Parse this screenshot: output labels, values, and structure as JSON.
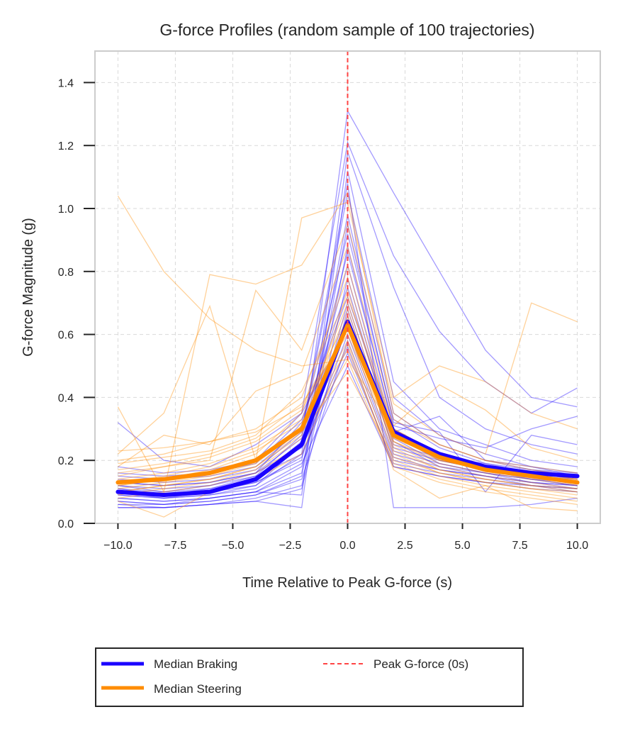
{
  "chart_data": {
    "type": "line",
    "title": "G-force Profiles (random sample of 100 trajectories)",
    "xlabel": "Time Relative to Peak G-force (s)",
    "ylabel": "G-force Magnitude (g)",
    "xlim": [
      -11,
      11
    ],
    "ylim": [
      0,
      1.5
    ],
    "grid": true,
    "x_ticks": [
      -10,
      -7.5,
      -5,
      -2.5,
      0,
      2.5,
      5,
      7.5,
      10
    ],
    "x_tick_labels": [
      "−10.0",
      "−7.5",
      "−5.0",
      "−2.5",
      "0.0",
      "2.5",
      "5.0",
      "7.5",
      "10.0"
    ],
    "y_ticks": [
      0,
      0.2,
      0.4,
      0.6,
      0.8,
      1.0,
      1.2,
      1.4
    ],
    "y_tick_labels": [
      "0.0",
      "0.2",
      "0.4",
      "0.6",
      "0.8",
      "1.0",
      "1.2",
      "1.4"
    ],
    "x": [
      -10,
      -8,
      -6,
      -4,
      -2,
      0,
      2,
      4,
      6,
      8,
      10
    ],
    "colors": {
      "braking": "#1a00ff",
      "steering": "#ff8c00",
      "peak_line": "#ff4444",
      "grid": "#d9d9d9",
      "spine": "#cccccc"
    },
    "series": [
      {
        "name": "Median Braking",
        "role": "median",
        "values": [
          0.1,
          0.09,
          0.1,
          0.14,
          0.25,
          0.64,
          0.29,
          0.22,
          0.18,
          0.16,
          0.15
        ]
      },
      {
        "name": "Median Steering",
        "role": "median",
        "values": [
          0.13,
          0.14,
          0.16,
          0.2,
          0.3,
          0.63,
          0.28,
          0.21,
          0.17,
          0.15,
          0.13
        ]
      }
    ],
    "sample_trajectories": {
      "braking": [
        [
          0.1,
          0.08,
          0.09,
          0.12,
          0.22,
          1.31,
          1.05,
          0.8,
          0.55,
          0.4,
          0.37
        ],
        [
          0.32,
          0.2,
          0.18,
          0.25,
          0.35,
          1.21,
          0.85,
          0.61,
          0.45,
          0.35,
          0.43
        ],
        [
          0.08,
          0.07,
          0.08,
          0.1,
          0.09,
          1.18,
          0.75,
          0.4,
          0.3,
          0.25,
          0.22
        ],
        [
          0.06,
          0.05,
          0.06,
          0.07,
          0.05,
          1.12,
          0.45,
          0.3,
          0.25,
          0.2,
          0.18
        ],
        [
          0.12,
          0.1,
          0.11,
          0.15,
          0.28,
          1.05,
          0.4,
          0.28,
          0.22,
          0.18,
          0.16
        ],
        [
          0.09,
          0.08,
          0.1,
          0.13,
          0.2,
          0.98,
          0.35,
          0.25,
          0.2,
          0.17,
          0.15
        ],
        [
          0.15,
          0.14,
          0.15,
          0.18,
          0.3,
          0.92,
          0.33,
          0.24,
          0.19,
          0.16,
          0.14
        ],
        [
          0.07,
          0.06,
          0.07,
          0.09,
          0.15,
          0.88,
          0.3,
          0.22,
          0.18,
          0.15,
          0.13
        ],
        [
          0.11,
          0.09,
          0.1,
          0.12,
          0.25,
          0.82,
          0.28,
          0.2,
          0.17,
          0.14,
          0.12
        ],
        [
          0.05,
          0.05,
          0.06,
          0.08,
          0.12,
          0.78,
          0.27,
          0.19,
          0.16,
          0.13,
          0.11
        ],
        [
          0.13,
          0.12,
          0.13,
          0.16,
          0.32,
          0.75,
          0.26,
          0.18,
          0.15,
          0.12,
          0.1
        ],
        [
          0.08,
          0.07,
          0.08,
          0.1,
          0.18,
          0.7,
          0.25,
          0.21,
          0.19,
          0.17,
          0.16
        ],
        [
          0.1,
          0.09,
          0.11,
          0.14,
          0.26,
          0.66,
          0.24,
          0.2,
          0.17,
          0.15,
          0.14
        ],
        [
          0.18,
          0.16,
          0.17,
          0.2,
          0.35,
          0.62,
          0.22,
          0.18,
          0.16,
          0.14,
          0.13
        ],
        [
          0.06,
          0.06,
          0.07,
          0.09,
          0.14,
          0.58,
          0.2,
          0.17,
          0.15,
          0.13,
          0.12
        ],
        [
          0.12,
          0.11,
          0.12,
          0.15,
          0.22,
          0.54,
          0.19,
          0.16,
          0.14,
          0.12,
          0.11
        ],
        [
          0.09,
          0.08,
          0.09,
          0.11,
          0.19,
          0.5,
          0.18,
          0.15,
          0.13,
          0.11,
          0.1
        ],
        [
          0.14,
          0.13,
          0.14,
          0.17,
          0.29,
          1.08,
          0.05,
          0.05,
          0.05,
          0.06,
          0.08
        ],
        [
          0.07,
          0.06,
          0.08,
          0.1,
          0.16,
          0.95,
          0.32,
          0.29,
          0.1,
          0.28,
          0.25
        ],
        [
          0.11,
          0.1,
          0.12,
          0.16,
          0.27,
          0.86,
          0.31,
          0.27,
          0.24,
          0.3,
          0.34
        ],
        [
          0.16,
          0.15,
          0.16,
          0.19,
          0.33,
          0.72,
          0.29,
          0.34,
          0.2,
          0.18,
          0.15
        ],
        [
          0.05,
          0.05,
          0.06,
          0.07,
          0.11,
          0.68,
          0.23,
          0.19,
          0.16,
          0.14,
          0.12
        ],
        [
          0.1,
          0.09,
          0.1,
          0.13,
          0.21,
          0.6,
          0.21,
          0.17,
          0.15,
          0.13,
          0.12
        ],
        [
          0.13,
          0.12,
          0.13,
          0.16,
          0.24,
          0.56,
          0.18,
          0.15,
          0.13,
          0.12,
          0.11
        ]
      ],
      "steering": [
        [
          1.04,
          0.8,
          0.65,
          0.55,
          0.5,
          0.52,
          0.3,
          0.22,
          0.18,
          0.16,
          0.14
        ],
        [
          0.37,
          0.1,
          0.79,
          0.76,
          0.82,
          1.05,
          0.35,
          0.25,
          0.2,
          0.17,
          0.15
        ],
        [
          0.22,
          0.35,
          0.69,
          0.2,
          0.97,
          1.02,
          0.4,
          0.5,
          0.45,
          0.35,
          0.3
        ],
        [
          0.15,
          0.18,
          0.2,
          0.74,
          0.55,
          0.95,
          0.38,
          0.28,
          0.22,
          0.7,
          0.64
        ],
        [
          0.18,
          0.28,
          0.25,
          0.42,
          0.48,
          0.88,
          0.33,
          0.25,
          0.2,
          0.18,
          0.16
        ],
        [
          0.12,
          0.14,
          0.17,
          0.22,
          0.35,
          0.82,
          0.3,
          0.22,
          0.18,
          0.16,
          0.14
        ],
        [
          0.2,
          0.22,
          0.26,
          0.3,
          0.4,
          0.78,
          0.28,
          0.2,
          0.17,
          0.15,
          0.13
        ],
        [
          0.1,
          0.12,
          0.14,
          0.18,
          0.28,
          0.74,
          0.26,
          0.19,
          0.16,
          0.14,
          0.12
        ],
        [
          0.14,
          0.16,
          0.19,
          0.24,
          0.33,
          0.7,
          0.25,
          0.18,
          0.15,
          0.13,
          0.11
        ],
        [
          0.08,
          0.1,
          0.12,
          0.16,
          0.25,
          0.66,
          0.24,
          0.17,
          0.14,
          0.12,
          0.1
        ],
        [
          0.16,
          0.18,
          0.21,
          0.26,
          0.36,
          0.62,
          0.22,
          0.16,
          0.13,
          0.11,
          0.09
        ],
        [
          0.11,
          0.13,
          0.15,
          0.19,
          0.3,
          0.58,
          0.2,
          0.15,
          0.12,
          0.1,
          0.08
        ],
        [
          0.13,
          0.15,
          0.18,
          0.23,
          0.32,
          0.55,
          0.19,
          0.14,
          0.11,
          0.09,
          0.07
        ],
        [
          0.09,
          0.11,
          0.13,
          0.17,
          0.27,
          0.52,
          0.18,
          0.13,
          0.1,
          0.08,
          0.06
        ],
        [
          0.17,
          0.19,
          0.22,
          0.27,
          0.38,
          0.6,
          0.26,
          0.2,
          0.17,
          0.15,
          0.13
        ],
        [
          0.1,
          0.12,
          0.14,
          0.18,
          0.29,
          0.48,
          0.21,
          0.16,
          0.13,
          0.11,
          0.1
        ],
        [
          0.23,
          0.24,
          0.26,
          0.29,
          0.37,
          0.65,
          0.27,
          0.21,
          0.18,
          0.16,
          0.14
        ],
        [
          0.07,
          0.02,
          0.1,
          0.14,
          0.22,
          0.57,
          0.17,
          0.08,
          0.12,
          0.05,
          0.04
        ],
        [
          0.19,
          0.21,
          0.23,
          0.28,
          0.42,
          0.72,
          0.31,
          0.44,
          0.36,
          0.24,
          0.2
        ],
        [
          0.12,
          0.14,
          0.16,
          0.2,
          0.31,
          0.68,
          0.23,
          0.17,
          0.14,
          0.12,
          0.11
        ]
      ]
    },
    "reference_line": {
      "name": "Peak G-force (0s)",
      "x": 0,
      "style": "dashed"
    },
    "legend": {
      "placement": "below",
      "entries": [
        "Median Braking",
        "Median Steering",
        "Peak G-force (0s)"
      ]
    }
  }
}
